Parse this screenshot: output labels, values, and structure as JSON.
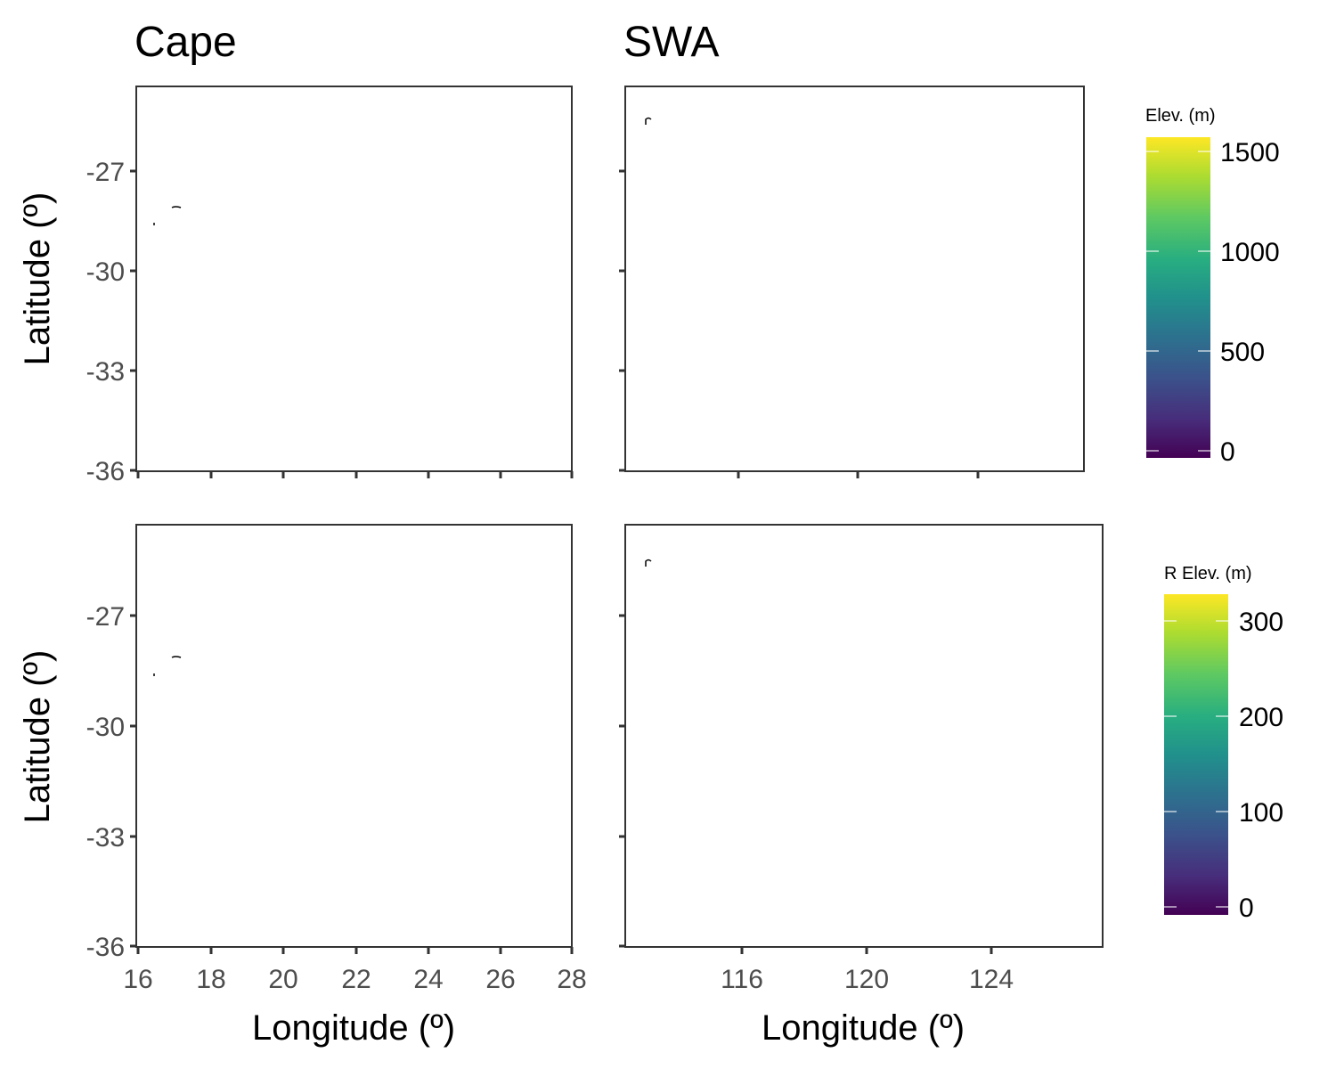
{
  "titles": {
    "cape": "Cape",
    "swa": "SWA"
  },
  "axis_labels": {
    "x": "Longitude (º)",
    "y": "Latitude (º)"
  },
  "y_ticks": [
    "-27",
    "-30",
    "-33",
    "-36"
  ],
  "cape_x_ticks": [
    "16",
    "18",
    "20",
    "22",
    "24",
    "26",
    "28"
  ],
  "swa_x_ticks": [
    "116",
    "120",
    "124"
  ],
  "legend_elev": {
    "title": "Elev. (m)",
    "labels": [
      "1500",
      "1000",
      "500",
      "0"
    ],
    "colormap": "viridis"
  },
  "legend_relev": {
    "title": "R Elev. (m)",
    "labels": [
      "300",
      "200",
      "100",
      "0"
    ],
    "colormap": "viridis"
  },
  "chart_data": [
    {
      "type": "heatmap",
      "panel": "Cape (Elev.)",
      "title": "Cape",
      "xlabel": "",
      "ylabel": "Latitude (º)",
      "xlim": [
        16,
        28
      ],
      "ylim": [
        -36,
        -24
      ],
      "x_ticks": [
        16,
        18,
        20,
        22,
        24,
        26,
        28
      ],
      "y_ticks": [
        -27,
        -30,
        -33,
        -36
      ],
      "colorbar": {
        "title": "Elev. (m)",
        "range": [
          0,
          1600
        ],
        "ticks": [
          0,
          500,
          1000,
          1500
        ]
      }
    },
    {
      "type": "heatmap",
      "panel": "SWA (Elev.)",
      "title": "SWA",
      "xlabel": "",
      "ylabel": "",
      "xlim": [
        112.5,
        127.5
      ],
      "ylim": [
        -36,
        -24
      ],
      "x_ticks": [
        116,
        120,
        124
      ],
      "y_ticks": [
        -27,
        -30,
        -33,
        -36
      ],
      "colorbar": {
        "title": "Elev. (m)",
        "range": [
          0,
          1600
        ],
        "ticks": [
          0,
          500,
          1000,
          1500
        ]
      }
    },
    {
      "type": "heatmap",
      "panel": "Cape (R Elev.)",
      "title": "",
      "xlabel": "Longitude (º)",
      "ylabel": "Latitude (º)",
      "xlim": [
        16,
        28
      ],
      "ylim": [
        -36,
        -24
      ],
      "x_ticks": [
        16,
        18,
        20,
        22,
        24,
        26,
        28
      ],
      "y_ticks": [
        -27,
        -30,
        -33,
        -36
      ],
      "colorbar": {
        "title": "R Elev. (m)",
        "range": [
          0,
          330
        ],
        "ticks": [
          0,
          100,
          200,
          300
        ]
      }
    },
    {
      "type": "heatmap",
      "panel": "SWA (R Elev.)",
      "title": "",
      "xlabel": "Longitude (º)",
      "ylabel": "",
      "xlim": [
        112.5,
        127.5
      ],
      "ylim": [
        -36,
        -24
      ],
      "x_ticks": [
        116,
        120,
        124
      ],
      "y_ticks": [
        -27,
        -30,
        -33,
        -36
      ],
      "colorbar": {
        "title": "R Elev. (m)",
        "range": [
          0,
          330
        ],
        "ticks": [
          0,
          100,
          200,
          300
        ]
      }
    }
  ]
}
